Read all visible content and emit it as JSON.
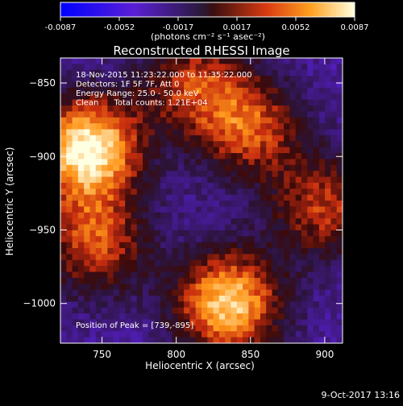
{
  "colorbar": {
    "ticks": [
      "-0.0087",
      "-0.0052",
      "-0.0017",
      "0.0017",
      "0.0052",
      "0.0087"
    ],
    "units": "(photons cm⁻² s⁻¹ asec⁻²)",
    "range": [
      -0.0087,
      0.0087
    ]
  },
  "chart_data": {
    "type": "heatmap",
    "title": "Reconstructed RHESSI Image",
    "xlabel": "Heliocentric X (arcsec)",
    "ylabel": "Heliocentric Y (arcsec)",
    "xlim": [
      722,
      912
    ],
    "ylim": [
      -1027,
      -833
    ],
    "xticks": [
      750,
      800,
      850,
      900
    ],
    "yticks": [
      -850,
      -900,
      -950,
      -1000
    ],
    "annotations": [
      "18-Nov-2015 11:23:22.000 to 11:35:22.000",
      "Detectors: 1F 5F 7F, Att 0",
      "Energy Range: 25.0 - 50.0 keV",
      "Clean      Total counts: 1.21E+04"
    ],
    "peak_label": "Position of Peak = [739,-895]",
    "peak_position": [
      739,
      -895
    ],
    "emission_sources": [
      {
        "x": 740,
        "y": -895,
        "peak": 0.0087
      },
      {
        "x": 835,
        "y": -1000,
        "peak": 0.0075
      },
      {
        "x": 850,
        "y": -880,
        "peak": 0.004
      },
      {
        "x": 900,
        "y": -935,
        "peak": 0.0035
      },
      {
        "x": 810,
        "y": -850,
        "peak": 0.003
      },
      {
        "x": 745,
        "y": -960,
        "peak": 0.004
      }
    ]
  },
  "timestamp": "9-Oct-2017 13:16"
}
